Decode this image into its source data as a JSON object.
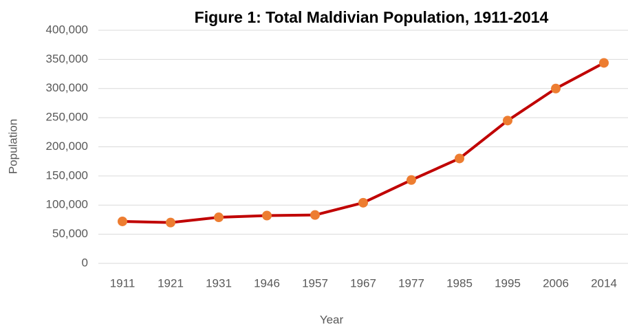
{
  "chart_data": {
    "type": "line",
    "title": "Figure 1: Total Maldivian Population, 1911-2014",
    "x_label": "Year",
    "y_label": "Population",
    "categories": [
      "1911",
      "1921",
      "1931",
      "1946",
      "1957",
      "1967",
      "1977",
      "1985",
      "1995",
      "2006",
      "2014"
    ],
    "series": [
      {
        "name": "Population",
        "color": "#c00000",
        "marker_color": "#ed7d31",
        "values": [
          72000,
          70000,
          79000,
          82000,
          83000,
          104000,
          143000,
          180000,
          245000,
          300000,
          344000
        ]
      }
    ],
    "ylim": [
      0,
      400000
    ],
    "yticks": [
      0,
      {
        "value": 50000,
        "label": "50,000"
      },
      {
        "value": 100000,
        "label": "100,000"
      },
      {
        "value": 150000,
        "label": "150,000"
      },
      {
        "value": 200000,
        "label": "200,000"
      },
      {
        "value": 250000,
        "label": "250,000"
      },
      {
        "value": 300000,
        "label": "300,000"
      },
      {
        "value": 350000,
        "label": "350,000"
      },
      {
        "value": 400000,
        "label": "400,000"
      }
    ],
    "grid": true
  }
}
